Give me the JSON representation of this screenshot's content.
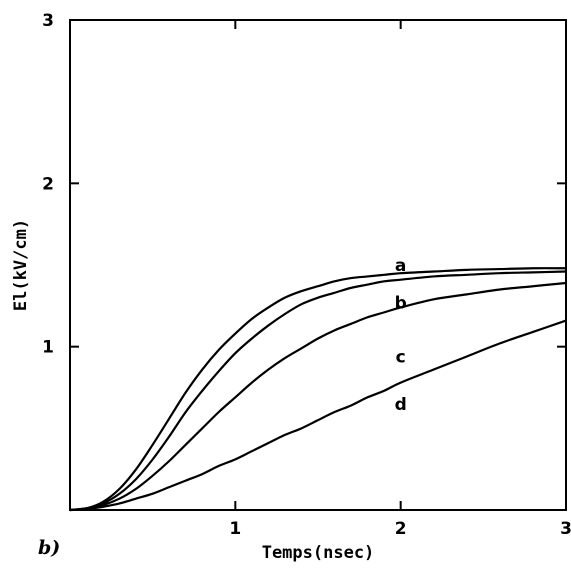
{
  "chart_data": {
    "type": "line",
    "xlabel": "Temps(nsec)",
    "ylabel": "El(kV/cm)",
    "xlim": [
      0,
      3
    ],
    "ylim": [
      0,
      3
    ],
    "x_ticks": [
      "1",
      "2",
      "3"
    ],
    "y_ticks": [
      "1",
      "2",
      "3"
    ],
    "grid": false,
    "panel_label": "b)",
    "x": [
      0,
      0.1,
      0.2,
      0.3,
      0.4,
      0.5,
      0.6,
      0.7,
      0.8,
      0.9,
      1.0,
      1.1,
      1.2,
      1.3,
      1.4,
      1.5,
      1.6,
      1.7,
      1.8,
      1.9,
      2.0,
      2.2,
      2.4,
      2.6,
      2.8,
      3.0
    ],
    "series": [
      {
        "name": "a",
        "label_at": [
          2.0,
          1.5
        ],
        "values": [
          0,
          0.01,
          0.05,
          0.13,
          0.25,
          0.4,
          0.56,
          0.72,
          0.86,
          0.98,
          1.08,
          1.17,
          1.24,
          1.3,
          1.34,
          1.37,
          1.4,
          1.42,
          1.43,
          1.44,
          1.45,
          1.46,
          1.47,
          1.475,
          1.48,
          1.48
        ]
      },
      {
        "name": "b",
        "label_at": [
          2.0,
          1.27
        ],
        "values": [
          0,
          0.01,
          0.04,
          0.1,
          0.19,
          0.31,
          0.45,
          0.6,
          0.73,
          0.85,
          0.96,
          1.05,
          1.13,
          1.2,
          1.26,
          1.3,
          1.33,
          1.36,
          1.38,
          1.4,
          1.41,
          1.43,
          1.44,
          1.45,
          1.455,
          1.46
        ]
      },
      {
        "name": "c",
        "label_at": [
          2.0,
          0.94
        ],
        "values": [
          0,
          0.01,
          0.03,
          0.07,
          0.13,
          0.21,
          0.3,
          0.4,
          0.5,
          0.6,
          0.69,
          0.78,
          0.86,
          0.93,
          0.99,
          1.05,
          1.1,
          1.14,
          1.18,
          1.21,
          1.24,
          1.29,
          1.32,
          1.35,
          1.37,
          1.39
        ]
      },
      {
        "name": "d",
        "label_at": [
          2.0,
          0.65
        ],
        "values": [
          0,
          0.005,
          0.02,
          0.04,
          0.07,
          0.1,
          0.14,
          0.18,
          0.22,
          0.27,
          0.31,
          0.36,
          0.41,
          0.46,
          0.5,
          0.55,
          0.6,
          0.64,
          0.69,
          0.73,
          0.78,
          0.86,
          0.94,
          1.02,
          1.09,
          1.16
        ]
      }
    ]
  }
}
